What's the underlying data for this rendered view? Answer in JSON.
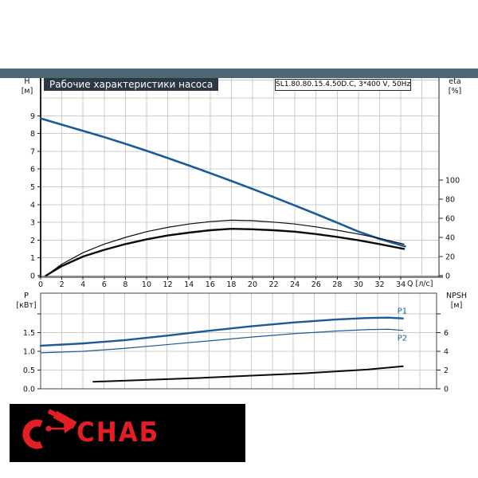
{
  "header": {
    "title": "Рабочие характеристики насоса",
    "model_label": "SL1.80.80.15.4.50D.C, 3*400 V, 50Hz"
  },
  "axes_labels": {
    "h_unit": "H",
    "h_unit2": "[м]",
    "eta_unit": "eta",
    "eta_unit2": "[%]",
    "p_unit": "P",
    "p_unit2": "[кВт]",
    "npsh_unit": "NPSH",
    "npsh_unit2": "[м]",
    "q_unit": "Q [л/с]"
  },
  "colors": {
    "curve_blue": "#1d5a99",
    "curve_black": "#0a0a0a",
    "grid": "#cccccc",
    "axis_dark": "#222222",
    "axis_gray": "#8a8a8a",
    "topbar": "#4c6674",
    "badge_bg": "#2c3845",
    "logo_red": "#e31e24",
    "logo_bg": "#000000"
  },
  "chart_data": [
    {
      "type": "line",
      "name": "head-efficiency-curves",
      "x_axis": {
        "label": "Q [л/с]",
        "min": 0,
        "max": 37.6,
        "ticks": [
          0,
          2,
          4,
          6,
          8,
          10,
          12,
          14,
          16,
          18,
          20,
          22,
          24,
          26,
          28,
          30,
          32,
          34
        ],
        "grid_step": 2
      },
      "y_left": {
        "label": "H [м]",
        "min": 0,
        "max": 11.1,
        "ticks": [
          0,
          1,
          2,
          3,
          4,
          5,
          6,
          7,
          8,
          9
        ],
        "grid_max": 11
      },
      "y_right": {
        "label": "eta [%]",
        "min": 0,
        "max": 100,
        "ticks": [
          0,
          20,
          40,
          60,
          80,
          100
        ]
      },
      "series": [
        {
          "name": "H",
          "axis": "left",
          "color": "blue",
          "width": 2.6,
          "x": [
            0,
            2,
            4,
            6,
            8,
            10,
            12,
            14,
            16,
            18,
            20,
            22,
            24,
            26,
            28,
            30,
            32,
            34.4
          ],
          "y": [
            8.85,
            8.5,
            8.15,
            7.8,
            7.42,
            7.03,
            6.62,
            6.2,
            5.77,
            5.33,
            4.88,
            4.42,
            3.95,
            3.47,
            2.98,
            2.48,
            2.07,
            1.65
          ]
        },
        {
          "name": "eta1",
          "axis": "right",
          "color": "black",
          "width": 1.2,
          "x": [
            0.5,
            2,
            4,
            6,
            8,
            10,
            12,
            14,
            16,
            18,
            20,
            22,
            24,
            26,
            28,
            30,
            32,
            34.3
          ],
          "y": [
            0,
            12,
            24,
            33,
            40,
            46,
            50.5,
            54,
            56.5,
            58,
            57.5,
            56,
            54,
            51,
            47.5,
            43.5,
            39,
            33
          ]
        },
        {
          "name": "eta2",
          "axis": "right",
          "color": "black",
          "width": 2.4,
          "x": [
            0.5,
            2,
            4,
            6,
            8,
            10,
            12,
            14,
            16,
            18,
            20,
            22,
            24,
            26,
            28,
            30,
            32,
            34.3
          ],
          "y": [
            0,
            10,
            20,
            27,
            33,
            38,
            42,
            45,
            47.5,
            49,
            48.5,
            47.5,
            46,
            43.5,
            40.5,
            37,
            33,
            28
          ]
        }
      ]
    },
    {
      "type": "line",
      "name": "power-npsh-curves",
      "x_axis": {
        "label": "",
        "min": 0,
        "max": 37.6,
        "ticks": [],
        "grid_step": 2
      },
      "y_left": {
        "label": "P [кВт]",
        "min": 0,
        "max": 2.55,
        "ticks": [
          0,
          0.5,
          1,
          1.5
        ],
        "tick_labels": [
          "0.0",
          "0.5",
          "1.0",
          "1.5"
        ],
        "unlabeled_ticks": [
          2
        ],
        "grid_vals": [
          0.5,
          1,
          1.5,
          2
        ]
      },
      "y_right": {
        "label": "NPSH [м]",
        "min": 0,
        "max": 10.2,
        "ticks": [
          0,
          2,
          4,
          6
        ],
        "unlabeled_ticks": [
          8
        ]
      },
      "series": [
        {
          "name": "P1",
          "label": "P1",
          "axis": "left",
          "color": "blue",
          "width": 2.4,
          "x": [
            0,
            4,
            8,
            12,
            16,
            20,
            24,
            28,
            31,
            33,
            34.4
          ],
          "y": [
            1.15,
            1.21,
            1.3,
            1.42,
            1.55,
            1.67,
            1.77,
            1.85,
            1.89,
            1.9,
            1.88
          ]
        },
        {
          "name": "P2",
          "label": "P2",
          "axis": "left",
          "color": "blue",
          "width": 1.2,
          "x": [
            0,
            4,
            8,
            12,
            16,
            20,
            24,
            28,
            31,
            33,
            34.4
          ],
          "y": [
            0.96,
            1.0,
            1.08,
            1.18,
            1.28,
            1.38,
            1.47,
            1.54,
            1.58,
            1.59,
            1.56
          ]
        },
        {
          "name": "NPSH",
          "axis": "right",
          "color": "black",
          "width": 2.0,
          "x": [
            5,
            10,
            15,
            20,
            25,
            28,
            31,
            34.4
          ],
          "y": [
            0.75,
            0.95,
            1.15,
            1.4,
            1.65,
            1.85,
            2.05,
            2.4
          ]
        }
      ]
    }
  ],
  "logo": {
    "text": "СНАБ"
  }
}
